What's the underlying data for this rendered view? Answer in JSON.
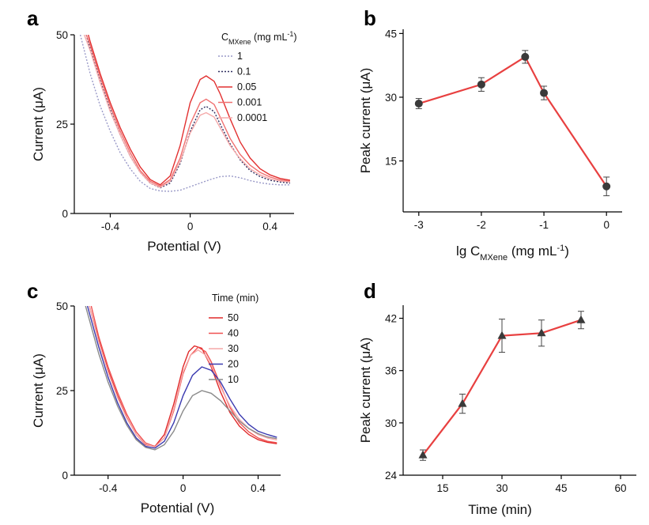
{
  "chart_data": [
    {
      "panel": "a",
      "type": "line",
      "xlabel": "Potential (V)",
      "ylabel": "Current (μA)",
      "xlim": [
        -0.58,
        0.52
      ],
      "ylim": [
        0,
        50
      ],
      "xticks": [
        -0.4,
        0,
        0.4
      ],
      "xtick_labels": [
        "-0.4",
        "0",
        "0.4"
      ],
      "yticks": [
        0,
        25,
        50
      ],
      "ytick_labels": [
        "0",
        "25",
        "50"
      ],
      "legend": {
        "title_main": "C",
        "title_sub": "MXene",
        "title_units": " (mg mL",
        "title_sup": "-1",
        "title_close": ")",
        "position": "top-right"
      },
      "series": [
        {
          "name": "1",
          "color": "#9a9ac8",
          "dash": "dotted",
          "x": [
            -0.55,
            -0.5,
            -0.45,
            -0.4,
            -0.35,
            -0.3,
            -0.25,
            -0.2,
            -0.15,
            -0.1,
            -0.05,
            0,
            0.05,
            0.1,
            0.15,
            0.2,
            0.25,
            0.3,
            0.35,
            0.4,
            0.45,
            0.5
          ],
          "y": [
            50,
            39,
            30,
            23,
            17,
            12.5,
            9,
            7,
            6.3,
            6.2,
            6.5,
            7.5,
            8.5,
            9.5,
            10.3,
            10.5,
            10,
            9.2,
            8.6,
            8.2,
            8,
            8
          ]
        },
        {
          "name": "0.1",
          "color": "#303060",
          "dash": "dotted",
          "x": [
            -0.52,
            -0.5,
            -0.45,
            -0.4,
            -0.35,
            -0.3,
            -0.25,
            -0.2,
            -0.15,
            -0.1,
            -0.05,
            0,
            0.05,
            0.08,
            0.12,
            0.15,
            0.2,
            0.25,
            0.3,
            0.35,
            0.4,
            0.45,
            0.5
          ],
          "y": [
            50,
            46,
            37,
            29,
            22,
            16,
            11.5,
            8.5,
            7.2,
            8.5,
            14,
            23,
            29,
            30,
            28.5,
            25,
            19.5,
            15,
            12,
            10.3,
            9.3,
            8.8,
            8.5
          ]
        },
        {
          "name": "0.05",
          "color": "#e23030",
          "dash": "solid",
          "x": [
            -0.51,
            -0.5,
            -0.45,
            -0.4,
            -0.35,
            -0.3,
            -0.25,
            -0.2,
            -0.15,
            -0.1,
            -0.05,
            0,
            0.05,
            0.08,
            0.12,
            0.15,
            0.2,
            0.25,
            0.3,
            0.35,
            0.4,
            0.45,
            0.5
          ],
          "y": [
            50,
            48,
            39,
            31,
            24,
            18,
            13,
            9.5,
            8,
            10.5,
            19,
            31,
            37.5,
            38.5,
            37,
            33.5,
            26.5,
            20,
            15.5,
            12.5,
            10.8,
            9.8,
            9.3
          ]
        },
        {
          "name": "0.001",
          "color": "#f07070",
          "dash": "solid",
          "x": [
            -0.52,
            -0.5,
            -0.45,
            -0.4,
            -0.35,
            -0.3,
            -0.25,
            -0.2,
            -0.15,
            -0.1,
            -0.05,
            0,
            0.05,
            0.08,
            0.12,
            0.15,
            0.2,
            0.25,
            0.3,
            0.35,
            0.4,
            0.45,
            0.5
          ],
          "y": [
            50,
            47,
            38,
            30,
            23,
            17,
            12,
            9,
            7.6,
            9.5,
            15.5,
            25,
            31,
            32,
            30.5,
            27,
            21,
            16.5,
            13.5,
            11.5,
            10.2,
            9.4,
            9
          ]
        },
        {
          "name": "0.0001",
          "color": "#f5aaaa",
          "dash": "solid",
          "x": [
            -0.53,
            -0.5,
            -0.45,
            -0.4,
            -0.35,
            -0.3,
            -0.25,
            -0.2,
            -0.15,
            -0.1,
            -0.05,
            0,
            0.05,
            0.08,
            0.12,
            0.15,
            0.2,
            0.25,
            0.3,
            0.35,
            0.4,
            0.45,
            0.5
          ],
          "y": [
            50,
            45.5,
            36.5,
            28.5,
            22,
            16,
            11.5,
            8.5,
            7.3,
            9,
            14.5,
            22.5,
            27.5,
            28.2,
            27,
            24,
            19,
            15.3,
            12.5,
            10.8,
            9.7,
            9.1,
            8.8
          ]
        }
      ]
    },
    {
      "panel": "b",
      "type": "line",
      "xlabel_main": "lg C",
      "xlabel_sub": "MXene",
      "xlabel_units": " (mg mL",
      "xlabel_sup": "-1",
      "xlabel_close": ")",
      "ylabel": "Peak current (μA)",
      "xlim": [
        -3.25,
        0.25
      ],
      "ylim": [
        3,
        46
      ],
      "xticks": [
        -3,
        -2,
        -1,
        0
      ],
      "xtick_labels": [
        "-3",
        "-2",
        "-1",
        "0"
      ],
      "yticks": [
        15,
        30,
        45
      ],
      "ytick_labels": [
        "15",
        "30",
        "45"
      ],
      "marker": "circle",
      "color": "#e84040",
      "series": [
        {
          "x": [
            -3,
            -2,
            -1.3,
            -1,
            0
          ],
          "y": [
            28.5,
            33,
            39.5,
            31,
            9
          ],
          "err": [
            1.2,
            1.6,
            1.5,
            1.6,
            2.2
          ]
        }
      ]
    },
    {
      "panel": "c",
      "type": "line",
      "xlabel": "Potential (V)",
      "ylabel": "Current (μA)",
      "xlim": [
        -0.58,
        0.52
      ],
      "ylim": [
        0,
        50
      ],
      "xticks": [
        -0.4,
        0,
        0.4
      ],
      "xtick_labels": [
        "-0.4",
        "0",
        "0.4"
      ],
      "yticks": [
        0,
        25,
        50
      ],
      "ytick_labels": [
        "0",
        "25",
        "50"
      ],
      "legend": {
        "title": "Time (min)",
        "position": "top-right"
      },
      "series": [
        {
          "name": "50",
          "color": "#e02a2a",
          "x": [
            -0.5,
            -0.45,
            -0.4,
            -0.35,
            -0.3,
            -0.25,
            -0.2,
            -0.15,
            -0.1,
            -0.05,
            0,
            0.03,
            0.06,
            0.1,
            0.15,
            0.2,
            0.25,
            0.3,
            0.35,
            0.4,
            0.45,
            0.5
          ],
          "y": [
            50,
            40,
            31,
            23.5,
            17,
            12,
            9,
            8.5,
            12,
            21,
            32,
            36.5,
            38.2,
            37.5,
            32,
            24.5,
            18.5,
            14.5,
            12,
            10.5,
            9.7,
            9.3
          ]
        },
        {
          "name": "40",
          "color": "#f05050",
          "x": [
            -0.49,
            -0.45,
            -0.4,
            -0.35,
            -0.3,
            -0.25,
            -0.2,
            -0.15,
            -0.1,
            -0.05,
            0,
            0.04,
            0.08,
            0.12,
            0.15,
            0.2,
            0.25,
            0.3,
            0.35,
            0.4,
            0.45,
            0.5
          ],
          "y": [
            50,
            41,
            32,
            24.5,
            18,
            12.8,
            9.5,
            8.5,
            11,
            19,
            30,
            35.5,
            37.8,
            36.5,
            33.5,
            26.5,
            20,
            15.5,
            12.8,
            11,
            10,
            9.6
          ]
        },
        {
          "name": "30",
          "color": "#f5a8a8",
          "x": [
            -0.5,
            -0.45,
            -0.4,
            -0.35,
            -0.3,
            -0.25,
            -0.2,
            -0.15,
            -0.1,
            -0.05,
            0,
            0.04,
            0.08,
            0.12,
            0.15,
            0.2,
            0.25,
            0.3,
            0.35,
            0.4,
            0.45,
            0.5
          ],
          "y": [
            50,
            39.5,
            30.5,
            23,
            16.8,
            12,
            9.2,
            8.3,
            11,
            19.5,
            30.5,
            35.5,
            37,
            35.5,
            32.5,
            26,
            20.5,
            16.5,
            13.8,
            12,
            11,
            10.4
          ]
        },
        {
          "name": "20",
          "color": "#3a3ab0",
          "x": [
            -0.51,
            -0.45,
            -0.4,
            -0.35,
            -0.3,
            -0.25,
            -0.2,
            -0.15,
            -0.1,
            -0.05,
            0,
            0.05,
            0.1,
            0.15,
            0.2,
            0.25,
            0.3,
            0.35,
            0.4,
            0.45,
            0.5
          ],
          "y": [
            50,
            38,
            29,
            21.5,
            15.5,
            11,
            8.5,
            8,
            10,
            15.5,
            23.5,
            29.5,
            32,
            31,
            27.5,
            22.5,
            18,
            15,
            13,
            12,
            11.2
          ]
        },
        {
          "name": "10",
          "color": "#8a8a8a",
          "x": [
            -0.52,
            -0.45,
            -0.4,
            -0.35,
            -0.3,
            -0.25,
            -0.2,
            -0.15,
            -0.1,
            -0.05,
            0,
            0.05,
            0.1,
            0.15,
            0.2,
            0.25,
            0.3,
            0.35,
            0.4,
            0.45,
            0.5
          ],
          "y": [
            50,
            36,
            27.5,
            20.5,
            14.8,
            10.5,
            8.2,
            7.5,
            9,
            13,
            19,
            23.5,
            25,
            24.2,
            22,
            19,
            16,
            13.8,
            12.3,
            11.3,
            10.8
          ]
        }
      ]
    },
    {
      "panel": "d",
      "type": "line",
      "xlabel": "Time (min)",
      "ylabel": "Peak current (μA)",
      "xlim": [
        5,
        64
      ],
      "ylim": [
        24,
        43.5
      ],
      "xticks": [
        15,
        30,
        45,
        60
      ],
      "xtick_labels": [
        "15",
        "30",
        "45",
        "60"
      ],
      "yticks": [
        24,
        30,
        36,
        42
      ],
      "ytick_labels": [
        "24",
        "30",
        "36",
        "42"
      ],
      "marker": "triangle",
      "color": "#e84040",
      "series": [
        {
          "x": [
            10,
            20,
            30,
            40,
            50
          ],
          "y": [
            26.3,
            32.2,
            40,
            40.3,
            41.8
          ],
          "err": [
            0.6,
            1.1,
            1.9,
            1.5,
            1.0
          ]
        }
      ]
    }
  ]
}
